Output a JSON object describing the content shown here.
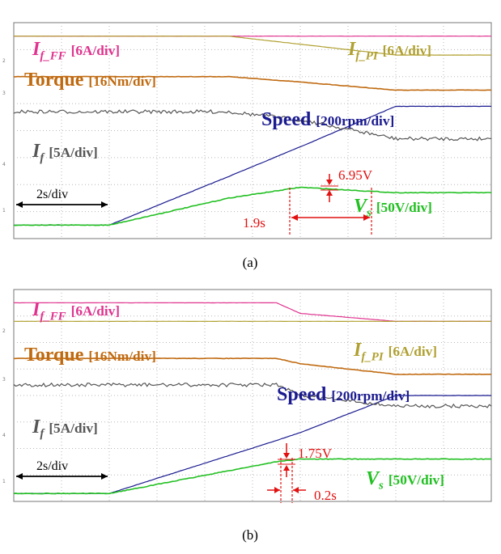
{
  "panels": [
    {
      "caption": "(a)",
      "labels": {
        "if_ff": {
          "sym": "I",
          "sub": "f_FF",
          "scale": "[6A/div]"
        },
        "if_pi": {
          "sym": "I",
          "sub": "f_PI",
          "scale": "[6A/div]"
        },
        "torque": {
          "name": "Torque",
          "scale": "[16Nm/div]"
        },
        "speed": {
          "name": "Speed",
          "scale": "[200rpm/div]"
        },
        "if": {
          "sym": "I",
          "sub": "f",
          "scale": "[5A/div]"
        },
        "vs": {
          "sym": "V",
          "sub": "s",
          "scale": "[50V/div]"
        }
      },
      "annotations": {
        "time_div": "2s/div",
        "ripple": "6.95V",
        "interval": "1.9s"
      },
      "channel_markers": [
        "2",
        "3",
        "4",
        "1"
      ]
    },
    {
      "caption": "(b)",
      "labels": {
        "if_ff": {
          "sym": "I",
          "sub": "f_FF",
          "scale": "[6A/div]"
        },
        "if_pi": {
          "sym": "I",
          "sub": "f_PI",
          "scale": "[6A/div]"
        },
        "torque": {
          "name": "Torque",
          "scale": "[16Nm/div]"
        },
        "speed": {
          "name": "Speed",
          "scale": "[200rpm/div]"
        },
        "if": {
          "sym": "I",
          "sub": "f",
          "scale": "[5A/div]"
        },
        "vs": {
          "sym": "V",
          "sub": "s",
          "scale": "[50V/div]"
        }
      },
      "annotations": {
        "time_div": "2s/div",
        "ripple": "1.75V",
        "interval": "0.2s"
      },
      "channel_markers": [
        "2",
        "3",
        "4",
        "1"
      ]
    }
  ],
  "colors": {
    "if_ff": "#e0338f",
    "if_pi": "#b0a030",
    "torque": "#c06a10",
    "speed": "#1a1a90",
    "if": "#555555",
    "vs": "#22c022",
    "annotation": "#e21010",
    "grid": "#b8b8b8",
    "frame": "#777777"
  },
  "chart_data": [
    {
      "type": "line",
      "title": "",
      "x_unit": "s",
      "x_scale": "2s/div",
      "x": [
        0,
        4,
        9,
        12,
        16,
        20
      ],
      "series": [
        {
          "name": "I_f_FF [6A/div]",
          "values": [
            3.5,
            3.5,
            3.5,
            3.5,
            3.5,
            3.5
          ]
        },
        {
          "name": "I_f_PI [6A/div]",
          "values": [
            3.5,
            3.5,
            3.5,
            3.2,
            2.8,
            2.8
          ]
        },
        {
          "name": "Torque [16Nm/div]",
          "values": [
            2.0,
            2.0,
            2.0,
            1.8,
            1.5,
            1.5
          ]
        },
        {
          "name": "Speed [200rpm/div]",
          "values": [
            -3.5,
            -3.5,
            -1.7,
            -0.6,
            0.9,
            0.9
          ]
        },
        {
          "name": "I_f [5A/div]",
          "values": [
            0.7,
            0.7,
            0.7,
            0.4,
            -0.3,
            -0.3
          ]
        },
        {
          "name": "V_s [50V/div]",
          "values": [
            -3.5,
            -3.5,
            -2.5,
            -2.1,
            -2.3,
            -2.3
          ]
        }
      ],
      "annotations": [
        "6.95V",
        "1.9s",
        "2s/div"
      ]
    },
    {
      "type": "line",
      "title": "",
      "x_unit": "s",
      "x_scale": "2s/div",
      "x": [
        0,
        4,
        11,
        12,
        16,
        20
      ],
      "series": [
        {
          "name": "I_f_FF [6A/div]",
          "values": [
            3.5,
            3.5,
            3.5,
            3.1,
            2.8,
            2.8
          ]
        },
        {
          "name": "I_f_PI [6A/div]",
          "values": [
            2.8,
            2.8,
            2.8,
            2.8,
            2.8,
            2.8
          ]
        },
        {
          "name": "Torque [16Nm/div]",
          "values": [
            1.4,
            1.4,
            1.4,
            1.2,
            0.8,
            0.8
          ]
        },
        {
          "name": "Speed [200rpm/div]",
          "values": [
            -3.7,
            -3.7,
            -1.7,
            -1.4,
            0.0,
            0.0
          ]
        },
        {
          "name": "I_f [5A/div]",
          "values": [
            0.4,
            0.4,
            0.4,
            0.0,
            -0.4,
            -0.4
          ]
        },
        {
          "name": "V_s [50V/div]",
          "values": [
            -3.7,
            -3.7,
            -2.5,
            -2.4,
            -2.4,
            -2.4
          ]
        }
      ],
      "annotations": [
        "1.75V",
        "0.2s",
        "2s/div"
      ]
    }
  ]
}
